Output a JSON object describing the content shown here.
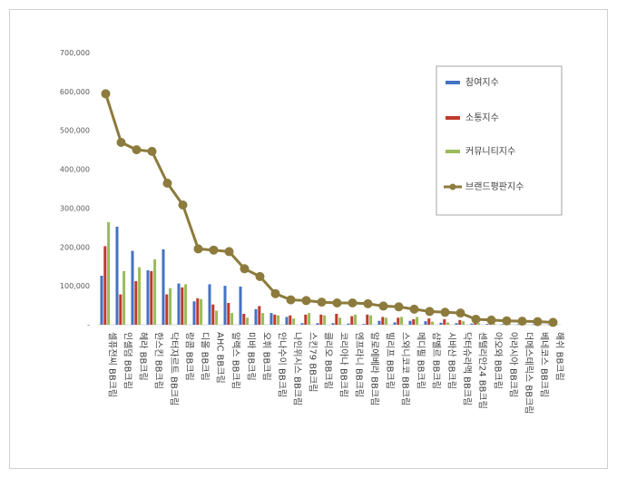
{
  "chart_data": {
    "type": "bar",
    "categories": [
      "셀퓨전씨 BB크림",
      "인셀덤 BB크림",
      "헤라 BB크림",
      "한스킨 BB크림",
      "닥터자르트 BB크림",
      "랑콤 BB크림",
      "디올 BB크림",
      "AHC BB크림",
      "알렉스 BB크림",
      "미바 BB크림",
      "오휘 BB크림",
      "안나수이 BB크림",
      "나인위시스 BB크림",
      "스킨79 BB크림",
      "클리오 BB크림",
      "코리아나 BB크림",
      "엔프라니 BB크림",
      "알로에베라 BB크림",
      "빌리프 BB크림",
      "스와니코코 BB크림",
      "메디필 BB크림",
      "샵벨르 BB크림",
      "시바산 BB크림",
      "닥터슈라멕 BB크림",
      "센텔리안24 BB크림",
      "아오와 BB크림",
      "아라시아 BB크림",
      "더메스테릭스 BB크림",
      "베네코스 BB크림",
      "해쉬 BB크림"
    ],
    "series": [
      {
        "name": "참여지수",
        "color": "#4472c4",
        "values": [
          126000,
          252000,
          190000,
          140000,
          194000,
          106000,
          60000,
          104000,
          100000,
          98000,
          40000,
          30000,
          20000,
          4000,
          4000,
          4000,
          3000,
          2000,
          10000,
          6000,
          10000,
          9000,
          5000,
          4000,
          3000,
          2000,
          1500,
          1000,
          800,
          500
        ]
      },
      {
        "name": "소통지수",
        "color": "#c0392b",
        "values": [
          202000,
          78000,
          112000,
          138000,
          78000,
          96000,
          68000,
          52000,
          56000,
          28000,
          48000,
          26000,
          24000,
          26000,
          26000,
          28000,
          22000,
          26000,
          20000,
          18000,
          14000,
          16000,
          14000,
          12000,
          4000,
          3000,
          2000,
          1500,
          1000,
          800
        ]
      },
      {
        "name": "커뮤니티지수",
        "color": "#9bbb59",
        "values": [
          264000,
          138000,
          148000,
          168000,
          94000,
          104000,
          66000,
          36000,
          30000,
          18000,
          30000,
          24000,
          16000,
          30000,
          24000,
          18000,
          26000,
          24000,
          18000,
          20000,
          20000,
          8000,
          6000,
          9000,
          4000,
          3000,
          2000,
          1500,
          1000,
          800
        ]
      }
    ],
    "line": {
      "name": "브랜드평판지수",
      "color": "#8c7b3c",
      "values": [
        594000,
        469000,
        450000,
        446000,
        364000,
        308000,
        195000,
        192000,
        188000,
        144000,
        124000,
        80000,
        64000,
        62000,
        58000,
        56000,
        56000,
        54000,
        48000,
        46000,
        40000,
        34000,
        32000,
        30000,
        14000,
        12000,
        10000,
        9000,
        8000,
        6000
      ]
    },
    "yticks": [
      "-",
      "100,000",
      "200,000",
      "300,000",
      "400,000",
      "500,000",
      "600,000",
      "700,000"
    ],
    "ylim": [
      0,
      700000
    ],
    "legend_position": "right"
  }
}
